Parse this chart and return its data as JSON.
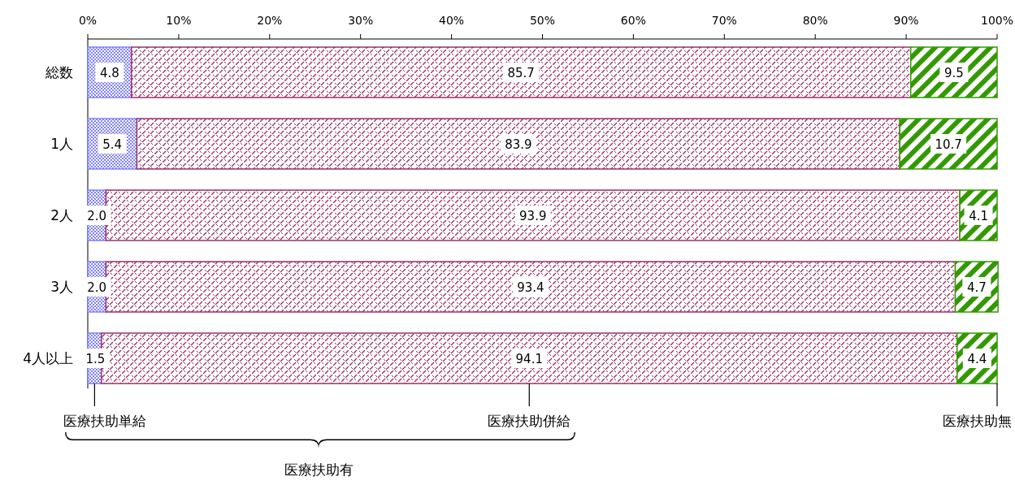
{
  "chart_data": {
    "type": "bar",
    "orientation": "horizontal",
    "stacked": true,
    "categories": [
      "総数",
      "1人",
      "2人",
      "3人",
      "4人以上"
    ],
    "series": [
      {
        "name": "医療扶助単給",
        "color": "#8080ff",
        "values": [
          4.8,
          5.4,
          2.0,
          2.0,
          1.5
        ],
        "value_labels": [
          "4.8",
          "5.4",
          "2.0",
          "2.0",
          "1.5"
        ]
      },
      {
        "name": "医療扶助併給",
        "color": "#993366",
        "values": [
          85.7,
          83.9,
          93.9,
          93.4,
          94.1
        ],
        "value_labels": [
          "85.7",
          "83.9",
          "93.9",
          "93.4",
          "94.1"
        ]
      },
      {
        "name": "医療扶助無",
        "color": "#339900",
        "values": [
          9.5,
          10.7,
          4.1,
          4.7,
          4.4
        ],
        "value_labels": [
          "9.5",
          "10.7",
          "4.1",
          "4.7",
          "4.4"
        ]
      }
    ],
    "xlim": [
      0,
      100
    ],
    "xticks": [
      {
        "value": 0,
        "label": "0%"
      },
      {
        "value": 10,
        "label": "10%"
      },
      {
        "value": 20,
        "label": "20%"
      },
      {
        "value": 30,
        "label": "30%"
      },
      {
        "value": 40,
        "label": "40%"
      },
      {
        "value": 50,
        "label": "50%"
      },
      {
        "value": 60,
        "label": "60%"
      },
      {
        "value": 70,
        "label": "70%"
      },
      {
        "value": 80,
        "label": "80%"
      },
      {
        "value": 90,
        "label": "90%"
      },
      {
        "value": 100,
        "label": "100%"
      }
    ],
    "annotations": [
      "医療扶助有"
    ]
  }
}
